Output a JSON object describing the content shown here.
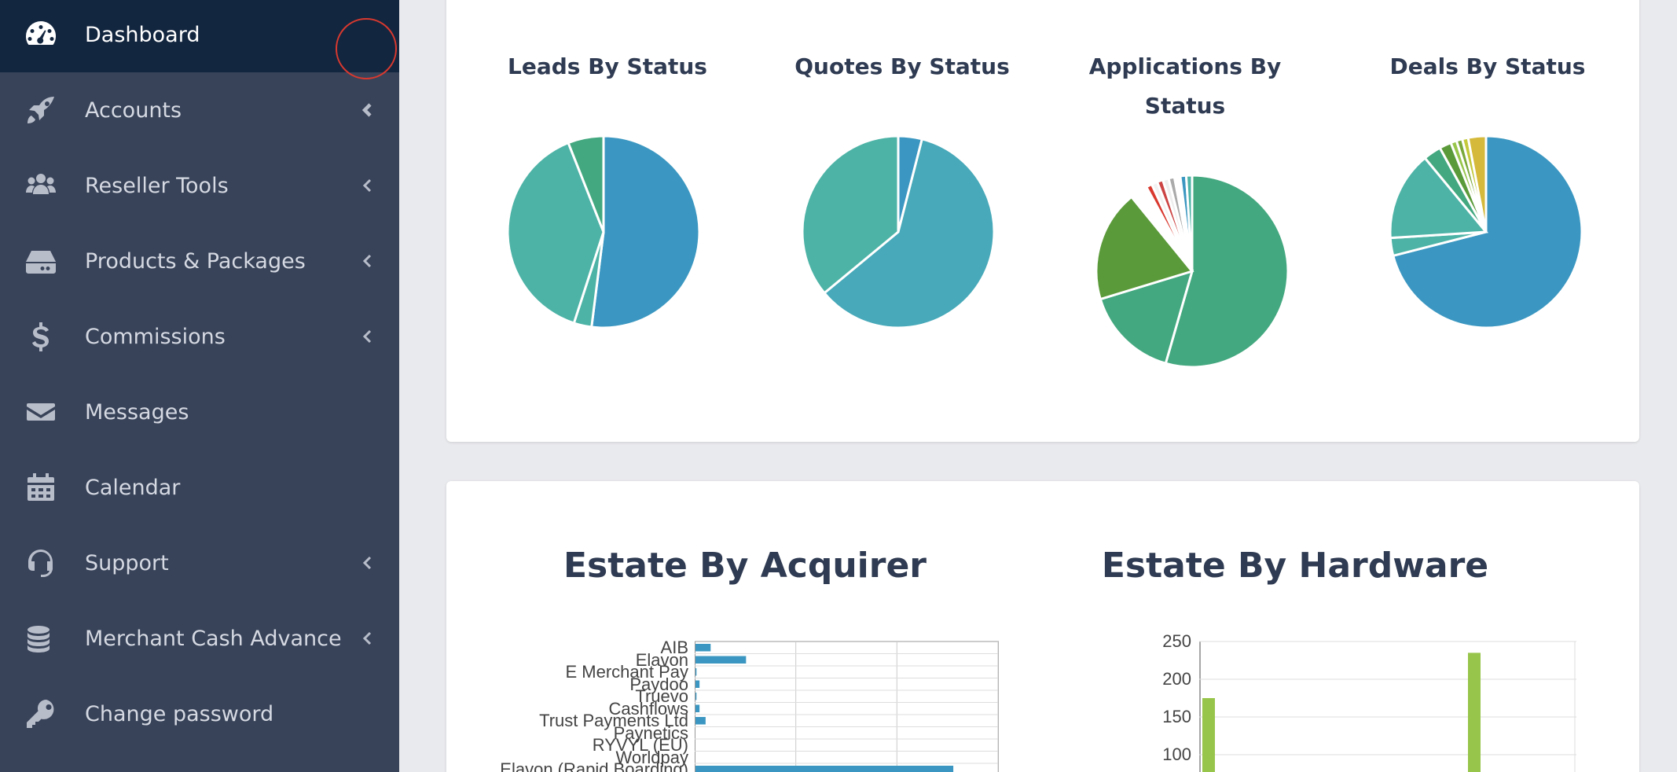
{
  "sidebar": {
    "items": [
      {
        "label": "Dashboard",
        "icon": "dashboard-gauge-icon",
        "active": true,
        "has_chevron": false
      },
      {
        "label": "Accounts",
        "icon": "rocket-icon",
        "active": false,
        "has_chevron": true
      },
      {
        "label": "Reseller Tools",
        "icon": "users-icon",
        "active": false,
        "has_chevron": true
      },
      {
        "label": "Products & Packages",
        "icon": "hdd-icon",
        "active": false,
        "has_chevron": true
      },
      {
        "label": "Commissions",
        "icon": "dollar-icon",
        "active": false,
        "has_chevron": true
      },
      {
        "label": "Messages",
        "icon": "envelope-icon",
        "active": false,
        "has_chevron": false
      },
      {
        "label": "Calendar",
        "icon": "calendar-icon",
        "active": false,
        "has_chevron": false
      },
      {
        "label": "Support",
        "icon": "headset-icon",
        "active": false,
        "has_chevron": true
      },
      {
        "label": "Merchant Cash Advance",
        "icon": "coins-icon",
        "active": false,
        "has_chevron": true
      },
      {
        "label": "Change password",
        "icon": "key-icon",
        "active": false,
        "has_chevron": false
      }
    ]
  },
  "pies": {
    "leads": {
      "title": "Leads By Status"
    },
    "quotes": {
      "title": "Quotes By Status"
    },
    "applications": {
      "title": "Applications By Status"
    },
    "deals": {
      "title": "Deals By Status"
    }
  },
  "estate": {
    "acquirer_title": "Estate By Acquirer",
    "hardware_title": "Estate By Hardware"
  },
  "colors": {
    "sidebar_bg": "#384359",
    "sidebar_active": "#13263f",
    "blue": "#3b97c1",
    "teal": "#4db3a6",
    "green": "#43a87f",
    "dark_green": "#5b9a3a",
    "lime": "#97c54b",
    "gold": "#d4b93a",
    "red": "#d9392f"
  },
  "chart_data": [
    {
      "type": "pie",
      "title": "Leads By Status",
      "values": [
        52,
        3,
        39,
        6
      ]
    },
    {
      "type": "pie",
      "title": "Quotes By Status",
      "values": [
        4,
        60,
        36
      ]
    },
    {
      "type": "pie",
      "title": "Applications By Status",
      "values": [
        55,
        16,
        19,
        3,
        1,
        1,
        1,
        1,
        1,
        1,
        1,
        1
      ]
    },
    {
      "type": "pie",
      "title": "Deals By Status",
      "values": [
        71,
        3,
        15,
        3,
        2,
        1,
        1,
        1,
        3
      ]
    },
    {
      "type": "bar",
      "orientation": "horizontal",
      "title": "Estate By Acquirer",
      "categories": [
        "AIB",
        "Elavon",
        "E Merchant Pay",
        "Paydoo",
        "Truevo",
        "Cashflows",
        "Trust Payments Ltd",
        "Paynetics",
        "RYVYL (EU)",
        "Worldpay",
        "Elavon (Rapid Boarding)"
      ],
      "values": [
        15,
        50,
        1,
        4,
        1,
        4,
        10,
        0,
        0,
        0,
        255
      ],
      "xlim": [
        0,
        300
      ]
    },
    {
      "type": "bar",
      "title": "Estate By Hardware",
      "y_ticks": [
        "250",
        "200",
        "150",
        "100"
      ],
      "values": [
        175,
        235
      ],
      "ylim": [
        0,
        250
      ]
    }
  ]
}
